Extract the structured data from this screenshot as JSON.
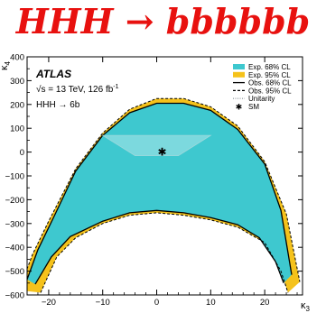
{
  "slide_title": "HHH → bbbbbb",
  "chart_data": {
    "type": "area",
    "experiment": "ATLAS",
    "energy_label": "√s = 13 TeV, 126 fb",
    "energy_superscript": "-1",
    "channel_label": "HHH → 6b",
    "xlabel": "κ",
    "xlabel_sub": "3",
    "ylabel": "κ",
    "ylabel_sub": "4",
    "xlim": [
      -24,
      27
    ],
    "ylim": [
      -600,
      400
    ],
    "xticks": [
      -20,
      -10,
      0,
      10,
      20
    ],
    "yticks": [
      400,
      300,
      200,
      100,
      0,
      -100,
      -200,
      -300,
      -400,
      -500,
      -600
    ],
    "xtick_labels": [
      "−20",
      "−10",
      "0",
      "10",
      "20"
    ],
    "ytick_labels": [
      "400",
      "300",
      "200",
      "100",
      "0",
      "−100",
      "−200",
      "−300",
      "−400",
      "−500",
      "−600"
    ],
    "legend_position": "top-right",
    "legend": [
      {
        "label": "Exp. 68% CL",
        "style": "fill",
        "color": "#3ec8cf"
      },
      {
        "label": "Exp. 95% CL",
        "style": "fill",
        "color": "#f5c21b"
      },
      {
        "label": "Obs. 68% CL",
        "style": "solid-line",
        "color": "#000000"
      },
      {
        "label": "Obs. 95% CL",
        "style": "dashed-line",
        "color": "#000000"
      },
      {
        "label": "Unitarity",
        "style": "dotted-line",
        "color": "#9aa3a6"
      },
      {
        "label": "SM",
        "style": "star",
        "color": "#e8110f"
      }
    ],
    "series": [
      {
        "name": "Exp. 95% CL",
        "outer_upper": [
          [
            -25.5,
            -580
          ],
          [
            -23,
            -430
          ],
          [
            -20,
            -290
          ],
          [
            -15,
            -70
          ],
          [
            -10,
            80
          ],
          [
            -5,
            180
          ],
          [
            0,
            225
          ],
          [
            5,
            225
          ],
          [
            10,
            190
          ],
          [
            15,
            110
          ],
          [
            20,
            -40
          ],
          [
            24,
            -260
          ],
          [
            26.5,
            -545
          ]
        ],
        "inner_lower": [
          [
            -21.5,
            -590
          ],
          [
            -18.5,
            -440
          ],
          [
            -15,
            -360
          ],
          [
            -10,
            -300
          ],
          [
            -5,
            -265
          ],
          [
            0,
            -255
          ],
          [
            5,
            -265
          ],
          [
            10,
            -285
          ],
          [
            15,
            -315
          ],
          [
            20,
            -380
          ],
          [
            23,
            -500
          ],
          [
            24.3,
            -590
          ]
        ]
      },
      {
        "name": "Exp. 68% CL",
        "outer_upper": [
          [
            -24,
            -535
          ],
          [
            -22,
            -410
          ],
          [
            -19,
            -270
          ],
          [
            -15,
            -80
          ],
          [
            -10,
            70
          ],
          [
            -5,
            165
          ],
          [
            0,
            205
          ],
          [
            5,
            205
          ],
          [
            10,
            175
          ],
          [
            15,
            95
          ],
          [
            20,
            -50
          ],
          [
            23,
            -245
          ],
          [
            25,
            -515
          ]
        ],
        "inner_lower": [
          [
            -22.5,
            -555
          ],
          [
            -19.5,
            -440
          ],
          [
            -16,
            -355
          ],
          [
            -10,
            -290
          ],
          [
            -5,
            -255
          ],
          [
            0,
            -245
          ],
          [
            5,
            -255
          ],
          [
            10,
            -275
          ],
          [
            15,
            -305
          ],
          [
            19,
            -360
          ],
          [
            22,
            -460
          ],
          [
            23.5,
            -550
          ]
        ]
      },
      {
        "name": "Unitarity",
        "polygon": [
          [
            -10,
            70
          ],
          [
            10,
            70
          ],
          [
            4,
            -15
          ],
          [
            -4,
            -15
          ]
        ]
      },
      {
        "name": "SM",
        "points": [
          [
            1,
            1
          ]
        ]
      }
    ]
  }
}
